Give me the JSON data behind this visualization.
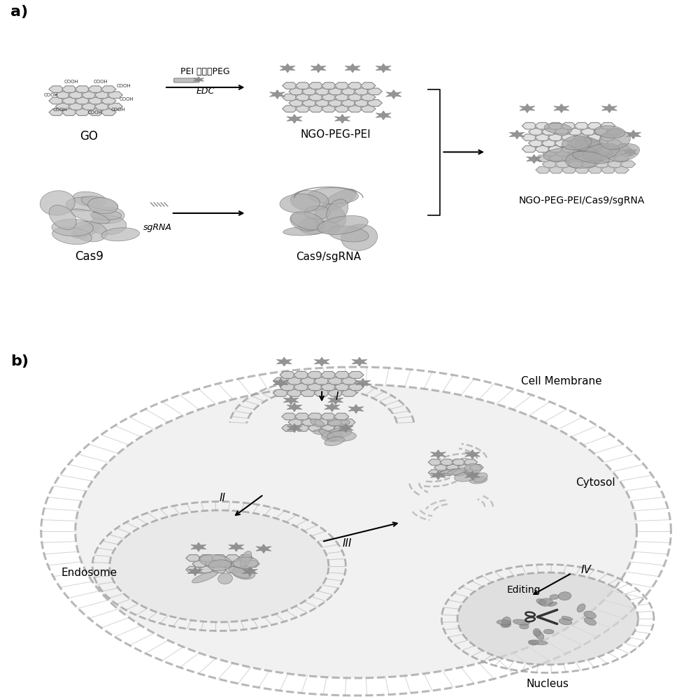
{
  "title": "",
  "bg_color": "#ffffff",
  "panel_a_label": "a)",
  "panel_b_label": "b)",
  "GO_label": "GO",
  "NGO_PEG_PEI_label": "NGO-PEG-PEI",
  "final_label": "NGO-PEG-PEI/Cas9/sgRNA",
  "Cas9_label": "Cas9",
  "Cas9_sgRNA_label": "Cas9/sgRNA",
  "arrow1_label": "EDC",
  "arrow1_above": "PEI 氨基化PEG",
  "arrow2_label": "sgRNA",
  "cell_membrane_label": "Cell Membrane",
  "cytosol_label": "Cytosol",
  "endosome_label": "Endosome",
  "nucleus_label": "Nucleus",
  "editing_label": "Editing",
  "step_I": "I",
  "step_II": "II",
  "step_III": "III",
  "step_IV": "IV",
  "graphene_fill": "#d8d8d8",
  "graphene_edge": "#888888",
  "star_color": "#888888",
  "protein_color": "#b0b0b0",
  "membrane_color": "#a0a0a0",
  "cell_bg": "#e8e8e8",
  "nucleus_bg": "#d8d8d8",
  "endosome_bg": "#e4e4e4",
  "text_color": "#000000",
  "arrow_color": "#000000"
}
